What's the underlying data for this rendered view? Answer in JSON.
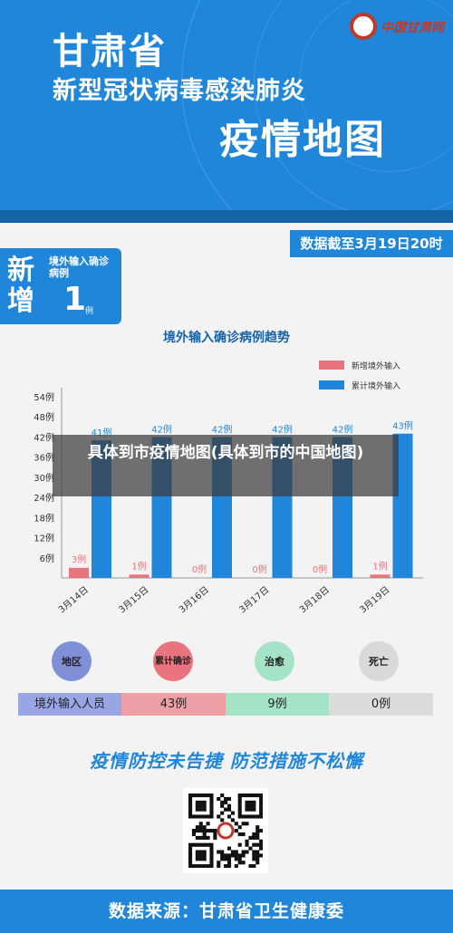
{
  "header": {
    "title_line1": "甘肃省",
    "title_line2": "新型冠状病毒感染肺炎",
    "title_line3": "疫情地图",
    "logo_text": "中国甘肃网"
  },
  "date_tag": "数据截至3月19日20时",
  "new_cases": {
    "big_label": "新增",
    "label": "境外输入确诊病例",
    "value": "1",
    "unit": "例"
  },
  "colors": {
    "primary": "#1f86d9",
    "dark_stripe": "#1763a8",
    "new_bar": "#e9737f",
    "cumulative_bar": "#1f86d9"
  },
  "chart_data": {
    "type": "bar",
    "title": "境外输入确诊病例趋势",
    "categories": [
      "3月14日",
      "3月15日",
      "3月16日",
      "3月17日",
      "3月18日",
      "3月19日"
    ],
    "series": [
      {
        "name": "新增境外输入",
        "values": [
          3,
          1,
          0,
          0,
          0,
          1
        ],
        "labels": [
          "3例",
          "1例",
          "0例",
          "0例",
          "0例",
          "1例"
        ],
        "color": "#e9737f"
      },
      {
        "name": "累计境外输入",
        "values": [
          41,
          42,
          42,
          42,
          42,
          43
        ],
        "labels": [
          "41例",
          "42例",
          "42例",
          "42例",
          "42例",
          "43例"
        ],
        "color": "#1f86d9"
      }
    ],
    "yticks": [
      "6例",
      "12例",
      "18例",
      "24例",
      "30例",
      "36例",
      "42例",
      "48例",
      "54例"
    ],
    "ylim": [
      0,
      54
    ],
    "legend_position": "top-right",
    "grid": false
  },
  "overlay_caption": "具体到市疫情地图(具体到市的中国地图)",
  "status_circles": [
    {
      "label": "地区",
      "color": "#7f8fd8"
    },
    {
      "label": "累计确诊",
      "color": "#e9737f"
    },
    {
      "label": "治愈",
      "color": "#a5e3c6"
    },
    {
      "label": "死亡",
      "color": "#d9d9d9"
    }
  ],
  "stats_row": [
    {
      "value": "境外输入人员",
      "color": "#9aa5e3"
    },
    {
      "value": "43例",
      "color": "#eea0a6"
    },
    {
      "value": "9例",
      "color": "#a5e3c6"
    },
    {
      "value": "0例",
      "color": "#dcdcdc"
    }
  ],
  "slogan": "疫情防控未告捷  防范措施不松懈",
  "footer": "数据来源：甘肃省卫生健康委"
}
